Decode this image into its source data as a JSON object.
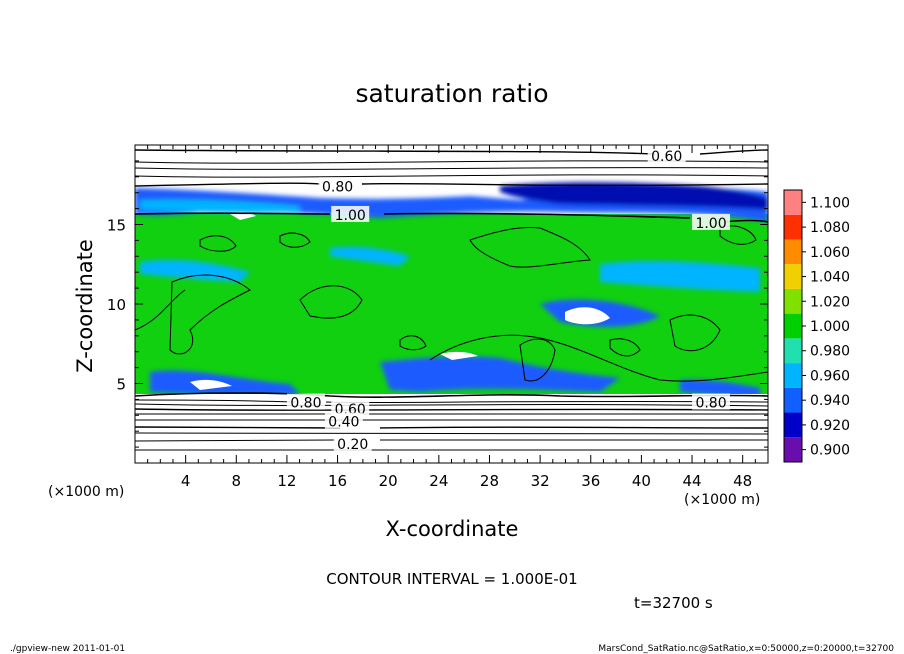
{
  "chart_data": {
    "type": "heatmap",
    "title": "saturation ratio",
    "xlabel": "X-coordinate",
    "ylabel": "Z-coordinate",
    "x_unit": "(×1000 m)",
    "z_unit": "(×1000 m)",
    "xlim": [
      0,
      50
    ],
    "ylim": [
      0,
      20
    ],
    "x_ticks": [
      "4",
      "8",
      "12",
      "16",
      "20",
      "24",
      "28",
      "32",
      "36",
      "40",
      "44",
      "48"
    ],
    "y_ticks": [
      "5",
      "10",
      "15"
    ],
    "colorbar": {
      "levels": [
        "0.900",
        "0.920",
        "0.940",
        "0.960",
        "0.980",
        "1.000",
        "1.020",
        "1.040",
        "1.060",
        "1.080",
        "1.100"
      ],
      "colors": [
        "#6a0dad",
        "#0000c8",
        "#1060ff",
        "#00b4ff",
        "#20e0b0",
        "#00d000",
        "#80e000",
        "#f0d000",
        "#ff8c00",
        "#ff3000",
        "#ff8080"
      ]
    },
    "contour_labels": [
      {
        "value": "0.60",
        "x": 42,
        "z": 19.3
      },
      {
        "value": "0.80",
        "x": 16,
        "z": 17.4
      },
      {
        "value": "1.00",
        "x": 17,
        "z": 15.6
      },
      {
        "value": "1.00",
        "x": 45.5,
        "z": 15.1
      },
      {
        "value": "0.80",
        "x": 13.5,
        "z": 3.8
      },
      {
        "value": "0.60",
        "x": 17,
        "z": 3.4
      },
      {
        "value": "0.40",
        "x": 16.5,
        "z": 2.6
      },
      {
        "value": "0.20",
        "x": 17.2,
        "z": 1.2
      },
      {
        "value": "0.80",
        "x": 45.5,
        "z": 3.8
      }
    ],
    "contour_interval": "CONTOUR INTERVAL = 1.000E-01",
    "time": "t=32700 s"
  },
  "footer": {
    "left": "./gpview-new 2011-01-01",
    "right": "MarsCond_SatRatio.nc@SatRatio,x=0:50000,z=0:20000,t=32700"
  }
}
